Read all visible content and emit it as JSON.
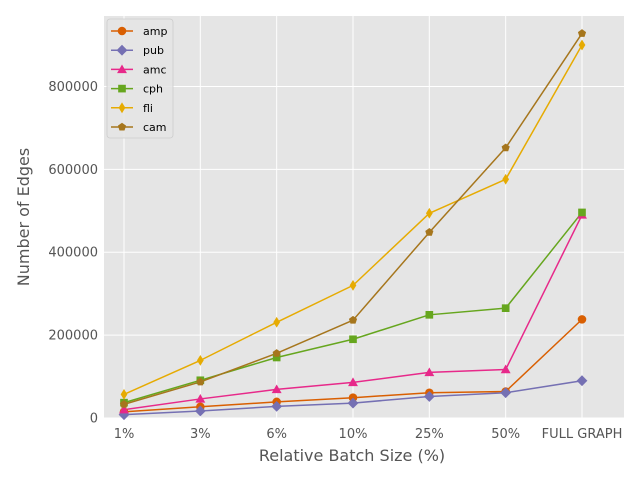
{
  "chart_data": {
    "type": "line",
    "title": "",
    "xlabel": "Relative Batch Size (%)",
    "ylabel": "Number of Edges",
    "categories": [
      "1%",
      "3%",
      "6%",
      "10%",
      "25%",
      "50%",
      "FULL GRAPH"
    ],
    "yticks": [
      "0",
      "200000",
      "400000",
      "600000",
      "800000"
    ],
    "ylim": [
      0,
      970000
    ],
    "grid": true,
    "legend_position": "top-left",
    "background": "#e5e5e5",
    "series": [
      {
        "name": "amp",
        "color": "#d95f02",
        "marker": "circle",
        "values": [
          15000,
          27000,
          39000,
          49000,
          61000,
          64000,
          238000
        ]
      },
      {
        "name": "pub",
        "color": "#7570b3",
        "marker": "diamond",
        "values": [
          8000,
          17000,
          28000,
          36000,
          52000,
          61000,
          90000
        ]
      },
      {
        "name": "amc",
        "color": "#e7298a",
        "marker": "triangle",
        "values": [
          20000,
          46000,
          69000,
          86000,
          110000,
          117000,
          490000
        ]
      },
      {
        "name": "cph",
        "color": "#66a61e",
        "marker": "square",
        "values": [
          37000,
          91000,
          146000,
          190000,
          249000,
          265000,
          496000
        ]
      },
      {
        "name": "fli",
        "color": "#e6ab02",
        "marker": "thin_diamond",
        "values": [
          57000,
          139000,
          231000,
          320000,
          494000,
          576000,
          900000
        ]
      },
      {
        "name": "cam",
        "color": "#a6761d",
        "marker": "pentagon",
        "values": [
          33000,
          87000,
          156000,
          236000,
          448000,
          652000,
          928000
        ]
      }
    ]
  }
}
